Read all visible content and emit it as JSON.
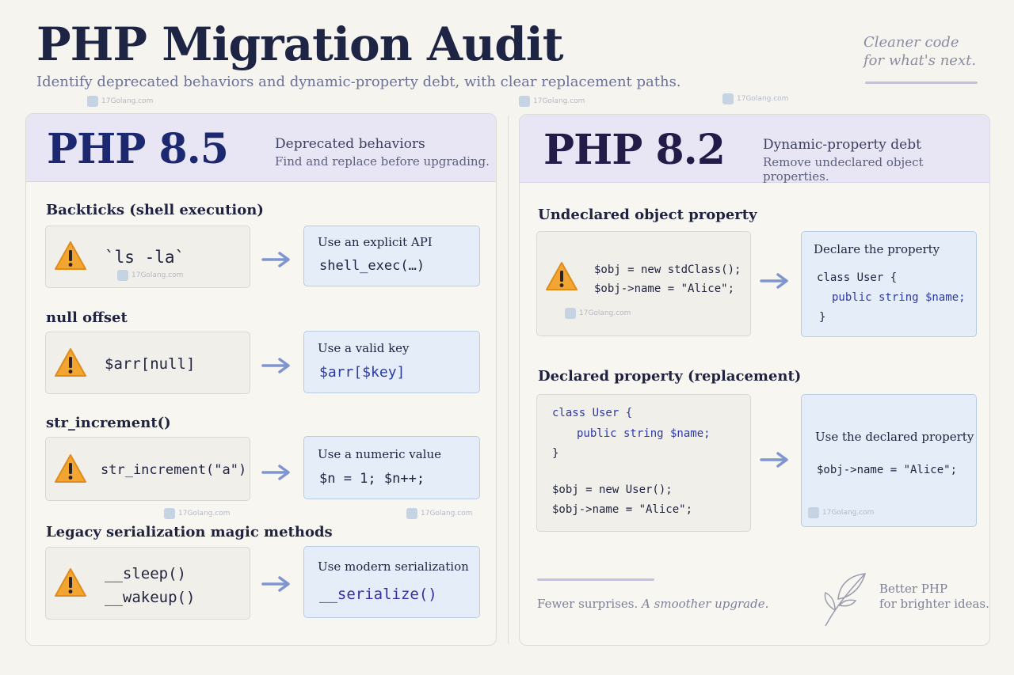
{
  "header": {
    "title": "PHP Migration Audit",
    "subtitle": "Identify deprecated behaviors and dynamic-property debt, with clear replacement paths.",
    "tagline_line1": "Cleaner code",
    "tagline_line2": "for what's next."
  },
  "watermark": "17Golang.com",
  "left_panel": {
    "version": "PHP 8.5",
    "heading": "Deprecated behaviors",
    "subheading": "Find and replace before upgrading.",
    "items": [
      {
        "label": "Backticks (shell execution)",
        "bad_code": "`ls -la`",
        "fix_title": "Use an explicit API",
        "fix_code": "shell_exec(…)"
      },
      {
        "label": "null  offset",
        "bad_code": "$arr[null]",
        "fix_title": "Use a valid key",
        "fix_code": "$arr[$key]"
      },
      {
        "label": "str_increment()",
        "bad_code": "str_increment(\"a\")",
        "fix_title": "Use a numeric value",
        "fix_code": "$n = 1; $n++;"
      },
      {
        "label": "Legacy serialization magic methods",
        "bad_code_1": "__sleep()",
        "bad_code_2": "__wakeup()",
        "fix_title": "Use modern serialization",
        "fix_code": "__serialize()"
      }
    ]
  },
  "right_panel": {
    "version": "PHP 8.2",
    "heading": "Dynamic-property debt",
    "subheading": "Remove undeclared object properties.",
    "undeclared": {
      "label": "Undeclared object property",
      "code_1": "$obj = new stdClass();",
      "code_2": "$obj->name = \"Alice\";",
      "fix_title": "Declare the property",
      "fix_code_1": "class User {",
      "fix_code_2": "public string $name;",
      "fix_code_3": "}"
    },
    "declared": {
      "label": "Declared property (replacement)",
      "code_1": "class User {",
      "code_2": "public string $name;",
      "code_3": "}",
      "code_4": "$obj = new User();",
      "code_5": "$obj->name = \"Alice\";",
      "fix_title": "Use the declared property",
      "fix_code": "$obj->name = \"Alice\";"
    },
    "footer_plain": "Fewer surprises.",
    "footer_italic": "A smoother upgrade.",
    "brand_line1": "Better PHP",
    "brand_line2": "for brighter ideas."
  },
  "colors": {
    "warning_fill": "#f2a531",
    "arrow": "#7f95cf",
    "header_band": "#e8e5f4",
    "fix_card": "#e5edf9"
  }
}
